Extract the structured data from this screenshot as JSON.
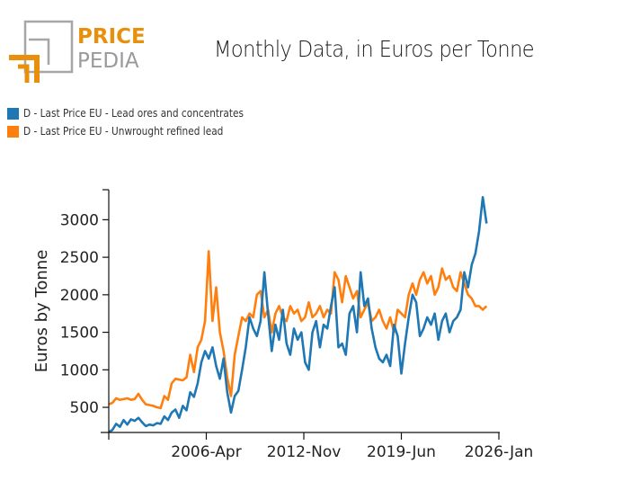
{
  "header": {
    "logo_top": "PRICE",
    "logo_bottom": "PEDIA",
    "title": "Monthly Data, in Euros per Tonne"
  },
  "legend": [
    {
      "label": "D - Last Price EU - Lead ores and concentrates",
      "color": "#1f77b4"
    },
    {
      "label": "D - Last Price EU - Unwrought refined lead",
      "color": "#ff7f0e"
    }
  ],
  "chart_data": {
    "type": "line",
    "title": "Monthly Data, in Euros per Tonne",
    "xlabel": "",
    "ylabel": "Euros by Tonne",
    "x_tick_labels": [
      "2006-Apr",
      "2012-Nov",
      "2019-Jun",
      "2026-Jan"
    ],
    "y_ticks": [
      500,
      1000,
      1500,
      2000,
      2500,
      3000
    ],
    "ylim": [
      165,
      3400
    ],
    "xlim": [
      "1999-Sep",
      "2026-Jan"
    ],
    "grid": false,
    "legend_position": "top-left",
    "x_start": "1999-Sep",
    "x_step_months": 3,
    "series": [
      {
        "name": "D - Last Price EU - Lead ores and concentrates",
        "color": "#1f77b4",
        "values": [
          170,
          200,
          280,
          240,
          330,
          270,
          340,
          320,
          360,
          300,
          250,
          270,
          260,
          290,
          280,
          380,
          330,
          430,
          470,
          360,
          520,
          460,
          700,
          640,
          820,
          1100,
          1250,
          1150,
          1300,
          1050,
          880,
          1150,
          700,
          430,
          650,
          720,
          1000,
          1300,
          1700,
          1550,
          1450,
          1650,
          2300,
          1750,
          1250,
          1600,
          1400,
          1800,
          1350,
          1200,
          1550,
          1400,
          1500,
          1100,
          1000,
          1500,
          1650,
          1300,
          1600,
          1550,
          1850,
          2100,
          1300,
          1350,
          1200,
          1750,
          1850,
          1500,
          2300,
          1850,
          1950,
          1550,
          1300,
          1150,
          1100,
          1200,
          1050,
          1600,
          1450,
          950,
          1350,
          1700,
          2000,
          1900,
          1450,
          1550,
          1700,
          1600,
          1750,
          1400,
          1650,
          1750,
          1500,
          1650,
          1700,
          1800,
          2300,
          2100,
          2400,
          2550,
          2850,
          3300,
          2950
        ]
      },
      {
        "name": "D - Last Price EU - Unwrought refined lead",
        "color": "#ff7f0e",
        "values": [
          540,
          560,
          620,
          600,
          610,
          620,
          600,
          610,
          680,
          600,
          540,
          530,
          520,
          500,
          490,
          650,
          600,
          820,
          880,
          870,
          860,
          900,
          1200,
          970,
          1300,
          1400,
          1650,
          2580,
          1650,
          2100,
          1500,
          1250,
          900,
          650,
          1200,
          1450,
          1700,
          1650,
          1750,
          1700,
          2000,
          2050,
          1700,
          1800,
          1500,
          1750,
          1850,
          1700,
          1650,
          1850,
          1750,
          1800,
          1650,
          1700,
          1900,
          1700,
          1750,
          1850,
          1700,
          1800,
          1750,
          2300,
          2200,
          1900,
          2250,
          2100,
          1950,
          2050,
          1700,
          1800,
          1900,
          1650,
          1700,
          1800,
          1650,
          1550,
          1700,
          1500,
          1800,
          1750,
          1700,
          2000,
          2150,
          2000,
          2200,
          2300,
          2150,
          2250,
          2000,
          2100,
          2350,
          2200,
          2250,
          2100,
          2050,
          2300,
          2150,
          2000,
          1950,
          1850,
          1850,
          1800,
          1850
        ]
      }
    ]
  }
}
